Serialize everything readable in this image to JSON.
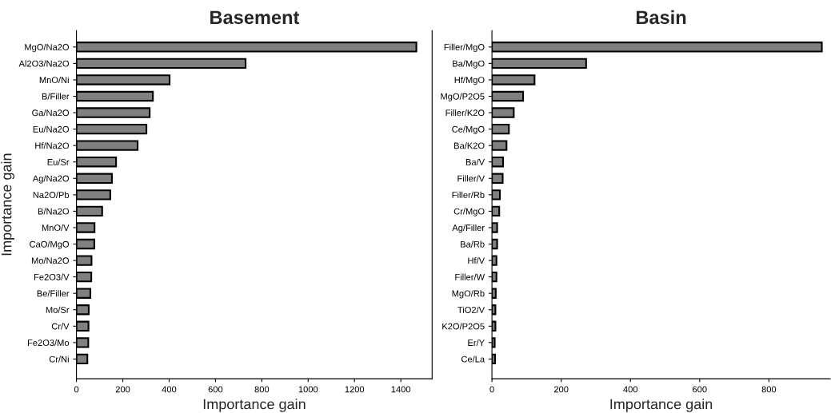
{
  "chart_data": [
    {
      "type": "bar",
      "orientation": "horizontal",
      "title": "Basement",
      "xlabel": "Importance gain",
      "ylabel": "Importance gain",
      "categories": [
        "MgO/Na2O",
        "Al2O3/Na2O",
        "MnO/Ni",
        "B/Filler",
        "Ga/Na2O",
        "Eu/Na2O",
        "Hf/Na2O",
        "Eu/Sr",
        "Ag/Na2O",
        "Na2O/Pb",
        "B/Na2O",
        "MnO/V",
        "CaO/MgO",
        "Mo/Na2O",
        "Fe2O3/V",
        "Be/Filler",
        "Mo/Sr",
        "Cr/V",
        "Fe2O3/Mo",
        "Cr/Ni"
      ],
      "values": [
        1467,
        730,
        402,
        330,
        316,
        302,
        264,
        171,
        153,
        146,
        111,
        78,
        77,
        65,
        64,
        60,
        53,
        52,
        51,
        47
      ],
      "color": "#808080",
      "xlim": [
        0,
        1535
      ],
      "xticks": [
        0,
        200,
        400,
        600,
        800,
        1000,
        1200,
        1400
      ],
      "grid": false,
      "legend": false
    },
    {
      "type": "bar",
      "orientation": "horizontal",
      "title": "Basin",
      "xlabel": "Importance gain",
      "categories": [
        "Filler/MgO",
        "Ba/MgO",
        "Hf/MgO",
        "MgO/P2O5",
        "Filler/K2O",
        "Ce/MgO",
        "Ba/K2O",
        "Ba/V",
        "Filler/V",
        "Filler/Rb",
        "Cr/MgO",
        "Ag/Filler",
        "Ba/Rb",
        "Hf/V",
        "Filler/W",
        "MgO/Rb",
        "TiO2/V",
        "K2O/P2O5",
        "Er/Y",
        "Ce/La"
      ],
      "values": [
        953,
        272,
        123,
        90,
        63,
        49,
        42,
        32,
        31,
        23,
        21,
        15,
        15,
        13,
        13,
        11,
        10,
        10,
        8,
        9
      ],
      "color": "#808080",
      "xlim": [
        0,
        977
      ],
      "xticks": [
        0,
        200,
        400,
        600,
        800
      ],
      "grid": false,
      "legend": false
    }
  ]
}
